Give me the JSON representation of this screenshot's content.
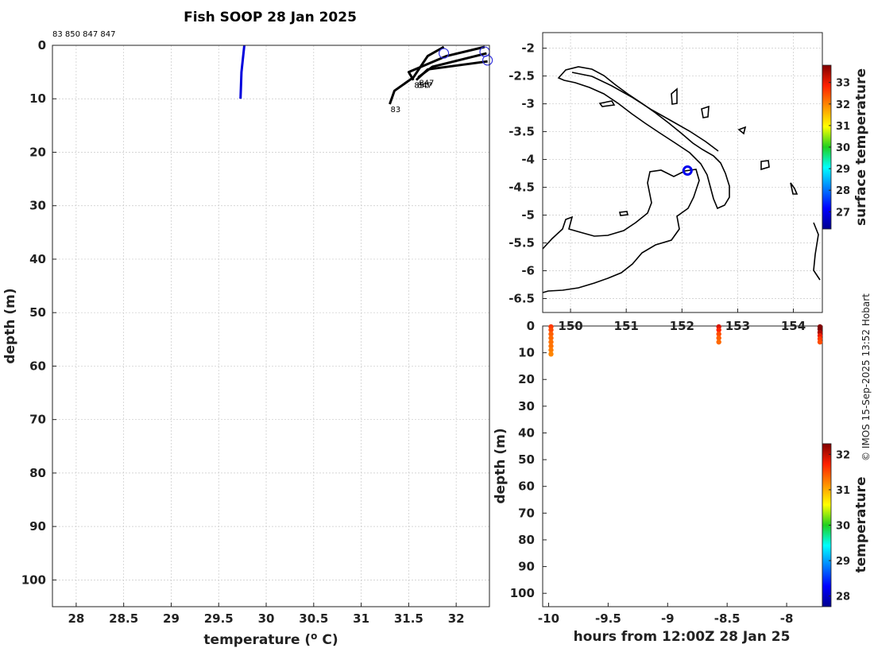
{
  "figure": {
    "title": "Fish SOOP 28 Jan 2025",
    "profile_ids_text": "83 850 847 847",
    "credit": "© IMOS 15-Sep-2025 13:52 Hobart"
  },
  "chart_data": [
    {
      "id": "profile",
      "type": "line",
      "title": "Fish SOOP 28 Jan 2025",
      "xlabel": "temperature (o C)",
      "ylabel": "depth (m)",
      "xlim": [
        27.75,
        32.35
      ],
      "ylim": [
        105,
        0
      ],
      "y_inverted": true,
      "xticks": [
        "28",
        "28.5",
        "29",
        "29.5",
        "30",
        "30.5",
        "31",
        "31.5",
        "32"
      ],
      "yticks": [
        "0",
        "10",
        "20",
        "30",
        "40",
        "50",
        "60",
        "70",
        "80",
        "90",
        "100"
      ],
      "grid": true,
      "series": [
        {
          "color": "#0000dd",
          "points": [
            [
              29.77,
              0
            ],
            [
              29.74,
              5
            ],
            [
              29.73,
              10
            ]
          ]
        },
        {
          "color": "#000000",
          "points": [
            [
              31.87,
              0.3
            ],
            [
              31.7,
              2
            ],
            [
              31.55,
              6
            ],
            [
              31.35,
              8.5
            ],
            [
              31.3,
              11
            ]
          ],
          "label": "83"
        },
        {
          "color": "#000000",
          "points": [
            [
              32.3,
              0.3
            ],
            [
              31.9,
              2
            ],
            [
              31.5,
              5
            ],
            [
              31.55,
              6.5
            ]
          ],
          "label": "850"
        },
        {
          "color": "#000000",
          "points": [
            [
              32.32,
              1.5
            ],
            [
              31.75,
              4
            ],
            [
              31.6,
              6
            ]
          ],
          "label": "847"
        },
        {
          "color": "#000000",
          "points": [
            [
              32.33,
              3
            ],
            [
              31.7,
              4.5
            ],
            [
              31.58,
              6.5
            ]
          ],
          "label": "847"
        }
      ],
      "surface_markers": [
        [
          31.87,
          1.5
        ],
        [
          32.3,
          1.2
        ],
        [
          32.33,
          2.8
        ]
      ],
      "marker_color": "#3333dd"
    },
    {
      "id": "map",
      "type": "scatter",
      "xlim": [
        149.5,
        154.52
      ],
      "ylim": [
        -6.75,
        -1.72
      ],
      "xticks": [
        "150",
        "151",
        "152",
        "153",
        "154"
      ],
      "yticks": [
        "-2",
        "-2.5",
        "-3",
        "-3.5",
        "-4",
        "-4.5",
        "-5",
        "-5.5",
        "-6",
        "-6.5"
      ],
      "grid": true,
      "station": [
        152.1,
        -4.2
      ],
      "station_color": "#0000ee",
      "colorbar": {
        "label": "surface temperature",
        "min": 26.2,
        "max": 33.8,
        "ticks": [
          "27",
          "28",
          "29",
          "30",
          "31",
          "32",
          "33"
        ]
      }
    },
    {
      "id": "timeseries",
      "type": "scatter",
      "xlabel": "hours from 12:00Z 28 Jan 25",
      "ylabel": "depth (m)",
      "xlim": [
        -10.05,
        -7.7
      ],
      "ylim": [
        105,
        0
      ],
      "y_inverted": true,
      "xticks": [
        "-10",
        "-9.5",
        "-9",
        "-8.5",
        "-8"
      ],
      "yticks": [
        "0",
        "10",
        "20",
        "30",
        "40",
        "50",
        "60",
        "70",
        "80",
        "90",
        "100"
      ],
      "grid": false,
      "profiles": [
        {
          "x": -9.98,
          "depths": [
            0.3,
            1.5,
            3,
            4.5,
            6,
            7.5,
            9,
            10.5
          ],
          "temps": [
            31.6,
            31.5,
            31.4,
            31.35,
            31.3,
            31.3,
            31.25,
            31.2
          ]
        },
        {
          "x": -8.57,
          "depths": [
            0.3,
            1.5,
            3,
            4.5,
            6
          ],
          "temps": [
            31.9,
            31.7,
            31.5,
            31.4,
            31.35
          ]
        },
        {
          "x": -7.72,
          "depths": [
            0.3,
            1.2,
            2.4,
            3.6,
            4.8,
            6
          ],
          "temps": [
            32.35,
            32.3,
            32.1,
            31.8,
            31.6,
            31.5
          ]
        }
      ],
      "colorbar": {
        "label": "temperature",
        "min": 27.7,
        "max": 32.3,
        "ticks": [
          "28",
          "29",
          "30",
          "31",
          "32"
        ]
      }
    }
  ]
}
